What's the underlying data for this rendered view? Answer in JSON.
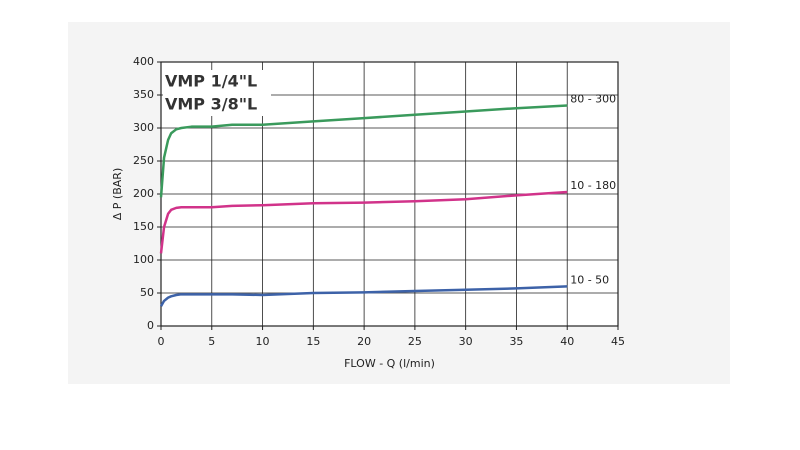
{
  "chart_data": {
    "type": "line",
    "title_lines": [
      "VMP 1/4\"L",
      "VMP 3/8\"L"
    ],
    "x_label": "FLOW - Q (l/min)",
    "y_label": "Δ P (BAR)",
    "xlim": [
      0,
      45
    ],
    "xticks": [
      0,
      5,
      10,
      15,
      20,
      25,
      30,
      35,
      40,
      45
    ],
    "ylim": [
      0,
      400
    ],
    "yticks": [
      0,
      50,
      100,
      150,
      200,
      250,
      300,
      350,
      400
    ],
    "grid": true,
    "series": [
      {
        "name": "80 - 300",
        "color": "#3a9a5c",
        "x": [
          0,
          0.3,
          0.7,
          1,
          1.5,
          2,
          3,
          5,
          7,
          10,
          15,
          20,
          25,
          30,
          35,
          40
        ],
        "values": [
          195,
          255,
          282,
          292,
          298,
          300,
          302,
          302,
          305,
          305,
          310,
          315,
          320,
          325,
          330,
          334
        ]
      },
      {
        "name": "10 - 180",
        "color": "#d1338a",
        "x": [
          0,
          0.3,
          0.7,
          1,
          1.5,
          2,
          3,
          5,
          7,
          10,
          15,
          20,
          25,
          30,
          35,
          40
        ],
        "values": [
          110,
          150,
          170,
          176,
          179,
          180,
          180,
          180,
          182,
          183,
          186,
          187,
          189,
          192,
          198,
          203
        ]
      },
      {
        "name": "10 - 50",
        "color": "#3d62a8",
        "x": [
          0,
          0.3,
          0.7,
          1,
          1.5,
          2,
          3,
          5,
          7,
          10,
          15,
          20,
          25,
          30,
          35,
          40
        ],
        "values": [
          30,
          38,
          43,
          45,
          47,
          48,
          48,
          48,
          48,
          47,
          50,
          51,
          53,
          55,
          57,
          60
        ]
      }
    ]
  }
}
